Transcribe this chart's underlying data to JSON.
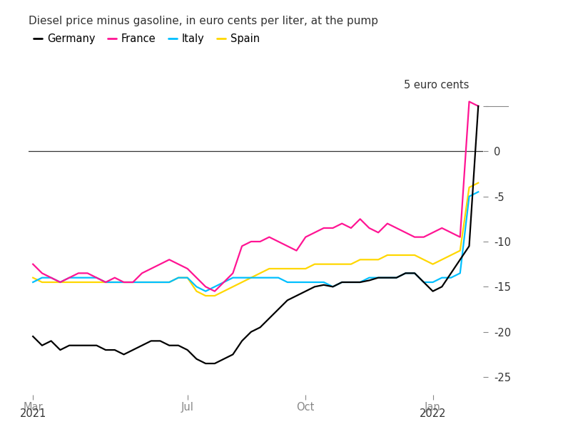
{
  "title": "Diesel price minus gasoline, in euro cents per liter, at the pump",
  "annotation": "5 euro cents",
  "legend_labels": [
    "Germany",
    "France",
    "Italy",
    "Spain"
  ],
  "colors": {
    "Germany": "#000000",
    "France": "#FF1493",
    "Italy": "#00BFFF",
    "Spain": "#FFD700"
  },
  "ylim": [
    -27,
    8
  ],
  "yticks": [
    5,
    0,
    -5,
    -10,
    -15,
    -20,
    -25
  ],
  "germany": [
    -20.5,
    -21.5,
    -21.0,
    -22.0,
    -21.5,
    -21.5,
    -21.5,
    -21.5,
    -22.0,
    -22.0,
    -22.5,
    -22.0,
    -21.5,
    -21.0,
    -21.0,
    -21.5,
    -21.5,
    -22.0,
    -23.0,
    -23.5,
    -23.5,
    -23.0,
    -22.5,
    -21.0,
    -20.0,
    -19.5,
    -18.5,
    -17.5,
    -16.5,
    -16.0,
    -15.5,
    -15.0,
    -14.8,
    -15.0,
    -14.5,
    -14.5,
    -14.5,
    -14.3,
    -14.0,
    -14.0,
    -14.0,
    -13.5,
    -13.5,
    -14.5,
    -15.5,
    -15.0,
    -13.5,
    -12.0,
    -10.5,
    5.0
  ],
  "france": [
    -12.5,
    -13.5,
    -14.0,
    -14.5,
    -14.0,
    -13.5,
    -13.5,
    -14.0,
    -14.5,
    -14.0,
    -14.5,
    -14.5,
    -13.5,
    -13.0,
    -12.5,
    -12.0,
    -12.5,
    -13.0,
    -14.0,
    -15.0,
    -15.5,
    -14.5,
    -13.5,
    -10.5,
    -10.0,
    -10.0,
    -9.5,
    -10.0,
    -10.5,
    -11.0,
    -9.5,
    -9.0,
    -8.5,
    -8.5,
    -8.0,
    -8.5,
    -7.5,
    -8.5,
    -9.0,
    -8.0,
    -8.5,
    -9.0,
    -9.5,
    -9.5,
    -9.0,
    -8.5,
    -9.0,
    -9.5,
    5.5,
    5.0
  ],
  "italy": [
    -14.5,
    -14.0,
    -14.0,
    -14.5,
    -14.0,
    -14.0,
    -14.0,
    -14.0,
    -14.5,
    -14.5,
    -14.5,
    -14.5,
    -14.5,
    -14.5,
    -14.5,
    -14.5,
    -14.0,
    -14.0,
    -15.0,
    -15.5,
    -15.0,
    -14.5,
    -14.0,
    -14.0,
    -14.0,
    -14.0,
    -14.0,
    -14.0,
    -14.5,
    -14.5,
    -14.5,
    -14.5,
    -14.5,
    -15.0,
    -14.5,
    -14.5,
    -14.5,
    -14.0,
    -14.0,
    -14.0,
    -14.0,
    -13.5,
    -13.5,
    -14.5,
    -14.5,
    -14.0,
    -14.0,
    -13.5,
    -5.0,
    -4.5
  ],
  "spain": [
    -14.0,
    -14.5,
    -14.5,
    -14.5,
    -14.5,
    -14.5,
    -14.5,
    -14.5,
    -14.5,
    -14.5,
    -14.5,
    -14.5,
    -14.5,
    -14.5,
    -14.5,
    -14.5,
    -14.0,
    -14.0,
    -15.5,
    -16.0,
    -16.0,
    -15.5,
    -15.0,
    -14.5,
    -14.0,
    -13.5,
    -13.0,
    -13.0,
    -13.0,
    -13.0,
    -13.0,
    -12.5,
    -12.5,
    -12.5,
    -12.5,
    -12.5,
    -12.0,
    -12.0,
    -12.0,
    -11.5,
    -11.5,
    -11.5,
    -11.5,
    -12.0,
    -12.5,
    -12.0,
    -11.5,
    -11.0,
    -4.0,
    -3.5
  ],
  "x_tick_positions": [
    0,
    17,
    30,
    44
  ],
  "x_tick_labels": [
    "Mar",
    "Jul",
    "Oct",
    "Jan"
  ],
  "x_year_labels": [
    "2021",
    "",
    "",
    "2022"
  ],
  "bg_color": "#ffffff",
  "text_color": "#333333",
  "tick_color": "#888888",
  "zero_line_color": "#333333",
  "title_fontsize": 11,
  "axis_fontsize": 10.5
}
